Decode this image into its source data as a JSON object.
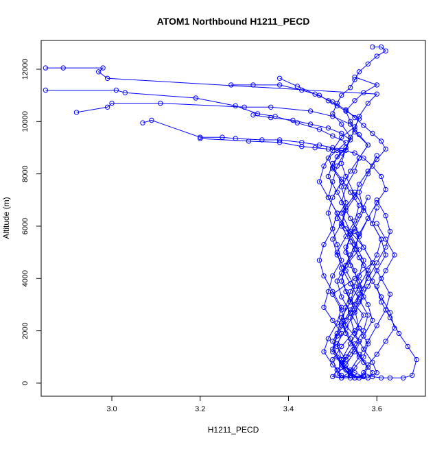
{
  "chart_data": {
    "type": "scatter",
    "title": "ATOM1 Northbound H1211_PECD",
    "xlabel": "H1211_PECD",
    "ylabel": "Altitude (m)",
    "xlim": [
      2.84,
      3.71
    ],
    "ylim": [
      -500,
      13100
    ],
    "x_ticks": [
      3.0,
      3.2,
      3.4,
      3.6
    ],
    "x_tick_labels": [
      "3.0",
      "3.2",
      "3.4",
      "3.6"
    ],
    "y_ticks": [
      0,
      2000,
      4000,
      6000,
      8000,
      10000,
      12000
    ],
    "y_tick_labels": [
      "0",
      "2000",
      "4000",
      "6000",
      "8000",
      "10000",
      "12000"
    ],
    "grid": false,
    "legend": "none",
    "series_color": "#0000ff",
    "marker": "open-circle",
    "line_connected": true,
    "series": [
      {
        "x": [
          2.85,
          2.89,
          2.98,
          2.97,
          2.99,
          3.6,
          3.58,
          3.56,
          3.55,
          3.53,
          3.52,
          3.53,
          3.55,
          3.52,
          3.54,
          3.57,
          3.59,
          3.55,
          3.5,
          3.52,
          3.53,
          3.56,
          3.54,
          3.52,
          3.55,
          3.57,
          3.55,
          3.52,
          3.51,
          3.5,
          3.52,
          3.55,
          3.57,
          3.54,
          3.52,
          3.53,
          3.56,
          3.54,
          3.51,
          3.53,
          3.52,
          3.54,
          3.56,
          3.58,
          3.55,
          3.54,
          3.53,
          3.55,
          3.57,
          3.6,
          3.55
        ],
        "y": [
          12050,
          12050,
          12050,
          11900,
          11650,
          11050,
          10700,
          10200,
          9700,
          9000,
          8400,
          7900,
          7200,
          6500,
          5800,
          5200,
          4600,
          4000,
          3400,
          2800,
          2200,
          1600,
          1100,
          700,
          400,
          250,
          200,
          200,
          500,
          900,
          1400,
          2000,
          2600,
          3200,
          3900,
          4500,
          5100,
          5700,
          6300,
          6900,
          7500,
          8100,
          8600,
          9100,
          9600,
          10000,
          10400,
          10800,
          11100,
          11400,
          11700
        ]
      },
      {
        "x": [
          2.85,
          3.01,
          3.03,
          3.19,
          3.28,
          3.33,
          3.37,
          3.42,
          3.47,
          3.5,
          3.53,
          3.51,
          3.49,
          3.5,
          3.52,
          3.5,
          3.49,
          3.5,
          3.51,
          3.52,
          3.5,
          3.49,
          3.48,
          3.5,
          3.52,
          3.51,
          3.53,
          3.51,
          3.5,
          3.52,
          3.54,
          3.52,
          3.51,
          3.53,
          3.55,
          3.57,
          3.56,
          3.54,
          3.53,
          3.55,
          3.57,
          3.56,
          3.58,
          3.6
        ],
        "y": [
          11200,
          11200,
          11100,
          10900,
          10600,
          10300,
          10200,
          9950,
          9700,
          9450,
          9200,
          8900,
          8600,
          8200,
          7700,
          7100,
          6500,
          5900,
          5300,
          4700,
          4100,
          3500,
          2900,
          2400,
          1900,
          1400,
          900,
          500,
          250,
          200,
          450,
          900,
          1500,
          2100,
          2700,
          3300,
          3900,
          4500,
          5200,
          5900,
          6600,
          7300,
          8000,
          8700
        ]
      },
      {
        "x": [
          2.92,
          2.99,
          3.0,
          3.11,
          3.3,
          3.36,
          3.45,
          3.5,
          3.54,
          3.56,
          3.58,
          3.56,
          3.55,
          3.53,
          3.52,
          3.54,
          3.56,
          3.55,
          3.53,
          3.51,
          3.52,
          3.54,
          3.56,
          3.58,
          3.57,
          3.55,
          3.54,
          3.52,
          3.51,
          3.53,
          3.55,
          3.57,
          3.59,
          3.58,
          3.56,
          3.55,
          3.53,
          3.54,
          3.56,
          3.58
        ],
        "y": [
          10350,
          10550,
          10700,
          10700,
          10550,
          10550,
          10400,
          10200,
          9900,
          9500,
          9100,
          8600,
          8100,
          7500,
          6900,
          6300,
          5700,
          5100,
          4500,
          3900,
          3300,
          2700,
          2100,
          1500,
          1000,
          600,
          300,
          200,
          350,
          700,
          1200,
          1800,
          2400,
          3000,
          3600,
          4300,
          5000,
          5700,
          6400,
          7100
        ]
      },
      {
        "x": [
          3.07,
          3.09,
          3.2,
          3.25,
          3.28,
          3.34,
          3.38,
          3.43,
          3.47,
          3.5,
          3.52,
          3.5,
          3.49,
          3.51,
          3.53,
          3.52,
          3.5,
          3.51,
          3.53,
          3.55,
          3.54,
          3.52,
          3.51,
          3.5,
          3.52,
          3.54,
          3.56,
          3.55,
          3.53,
          3.52,
          3.54,
          3.56,
          3.55,
          3.53,
          3.52,
          3.54,
          3.56,
          3.58
        ],
        "y": [
          9950,
          10050,
          9400,
          9400,
          9350,
          9300,
          9300,
          9200,
          9100,
          9000,
          8800,
          8400,
          7900,
          7300,
          6700,
          6100,
          5500,
          4900,
          4300,
          3700,
          3100,
          2500,
          1900,
          1300,
          800,
          400,
          200,
          200,
          500,
          900,
          1500,
          2100,
          2800,
          3500,
          4200,
          4900,
          5600,
          6300
        ]
      },
      {
        "x": [
          3.2,
          3.31,
          3.38,
          3.43,
          3.46,
          3.49,
          3.52,
          3.55,
          3.57,
          3.59,
          3.61,
          3.62,
          3.6,
          3.58,
          3.56,
          3.55,
          3.57,
          3.59,
          3.61,
          3.63,
          3.64,
          3.62,
          3.6,
          3.58,
          3.57,
          3.59,
          3.61,
          3.63,
          3.66,
          3.68,
          3.69,
          3.67,
          3.65,
          3.63,
          3.61,
          3.6,
          3.62,
          3.64,
          3.62,
          3.6
        ],
        "y": [
          9350,
          9250,
          9200,
          9050,
          9000,
          8950,
          8900,
          8800,
          8600,
          8300,
          7900,
          7400,
          6900,
          6300,
          5700,
          5100,
          4500,
          3900,
          3300,
          2700,
          2100,
          1600,
          1100,
          700,
          400,
          250,
          200,
          200,
          200,
          300,
          900,
          1400,
          1900,
          2500,
          3100,
          3700,
          4300,
          4900,
          5500,
          6100
        ]
      },
      {
        "x": [
          3.27,
          3.32,
          3.38,
          3.43,
          3.47,
          3.49,
          3.51,
          3.53,
          3.56,
          3.55,
          3.52,
          3.5,
          3.48,
          3.47,
          3.49,
          3.51,
          3.5,
          3.48,
          3.47,
          3.48,
          3.5,
          3.52,
          3.51,
          3.49,
          3.48,
          3.5,
          3.52,
          3.54,
          3.53,
          3.51,
          3.5,
          3.52,
          3.54,
          3.56,
          3.58,
          3.6,
          3.62,
          3.63,
          3.62,
          3.6
        ],
        "y": [
          11400,
          11400,
          11400,
          11200,
          11000,
          10800,
          10600,
          10400,
          10100,
          9800,
          9400,
          8900,
          8300,
          7700,
          7100,
          6500,
          5900,
          5300,
          4700,
          4100,
          3500,
          2900,
          2300,
          1700,
          1200,
          700,
          300,
          200,
          500,
          1000,
          1600,
          2200,
          2800,
          3400,
          4000,
          4600,
          5200,
          5800,
          6400,
          7000
        ]
      },
      {
        "x": [
          3.38,
          3.42,
          3.46,
          3.5,
          3.53,
          3.55,
          3.57,
          3.59,
          3.61,
          3.62,
          3.6,
          3.58,
          3.56,
          3.55,
          3.53,
          3.52,
          3.54,
          3.56,
          3.58,
          3.57,
          3.55,
          3.53,
          3.51,
          3.5,
          3.52,
          3.54,
          3.56,
          3.58,
          3.6,
          3.59,
          3.57,
          3.55,
          3.54,
          3.56,
          3.58,
          3.6,
          3.62,
          3.61,
          3.59,
          3.6
        ],
        "y": [
          11650,
          11350,
          11050,
          10750,
          10450,
          10150,
          9850,
          9550,
          9250,
          8950,
          8550,
          8100,
          7600,
          7100,
          6600,
          6000,
          5400,
          4800,
          4200,
          3600,
          3000,
          2400,
          1800,
          1200,
          700,
          300,
          200,
          200,
          400,
          800,
          1300,
          1900,
          2500,
          3100,
          3700,
          4300,
          4900,
          5500,
          6100,
          6700
        ]
      },
      {
        "x": [
          3.59,
          3.61,
          3.62,
          3.6,
          3.58,
          3.56,
          3.55,
          3.54,
          3.52,
          3.51,
          3.5,
          3.52,
          3.54,
          3.53,
          3.51,
          3.5,
          3.49,
          3.51,
          3.53,
          3.55,
          3.57,
          3.56,
          3.54,
          3.53,
          3.52,
          3.54,
          3.56,
          3.58,
          3.57,
          3.55,
          3.54,
          3.56,
          3.58,
          3.6,
          3.62,
          3.63,
          3.61,
          3.59,
          3.57,
          3.55
        ],
        "y": [
          12850,
          12850,
          12700,
          12500,
          12200,
          11900,
          11600,
          11300,
          11000,
          10700,
          10300,
          9900,
          9400,
          8900,
          8300,
          7700,
          7100,
          6500,
          5900,
          5300,
          4700,
          4100,
          3500,
          2900,
          2300,
          1700,
          1100,
          600,
          300,
          200,
          500,
          1000,
          1600,
          2200,
          2800,
          3400,
          4000,
          4600,
          5200,
          5800
        ]
      },
      {
        "x": [
          3.32,
          3.36,
          3.41,
          3.45,
          3.49,
          3.52,
          3.54,
          3.53,
          3.51,
          3.5,
          3.52,
          3.54,
          3.56,
          3.55,
          3.53,
          3.51,
          3.52,
          3.54,
          3.56,
          3.58,
          3.57,
          3.55,
          3.53,
          3.52,
          3.54,
          3.56,
          3.58,
          3.59,
          3.57,
          3.55,
          3.53,
          3.52,
          3.54,
          3.56,
          3.58,
          3.6,
          3.61,
          3.59,
          3.57,
          3.55
        ],
        "y": [
          10250,
          10150,
          10050,
          9900,
          9750,
          9550,
          9300,
          9000,
          8650,
          8250,
          7800,
          7300,
          6800,
          6200,
          5600,
          5000,
          4400,
          3800,
          3200,
          2600,
          2000,
          1500,
          1000,
          600,
          300,
          200,
          200,
          400,
          800,
          1300,
          1900,
          2500,
          3100,
          3700,
          4300,
          4900,
          5500,
          6100,
          6700,
          7300
        ]
      }
    ]
  }
}
